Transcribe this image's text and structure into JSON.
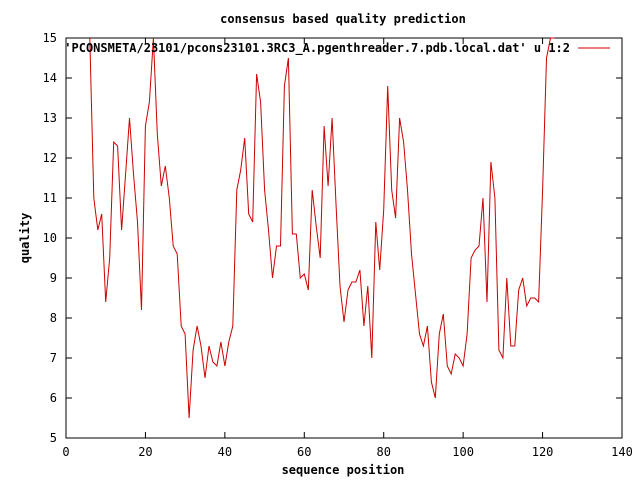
{
  "chart_data": {
    "type": "line",
    "title": "consensus based quality prediction",
    "xlabel": "sequence position",
    "ylabel": "quality",
    "xlim": [
      0,
      140
    ],
    "ylim": [
      5,
      15
    ],
    "xticks": [
      0,
      20,
      40,
      60,
      80,
      100,
      120,
      140
    ],
    "yticks": [
      5,
      6,
      7,
      8,
      9,
      10,
      11,
      12,
      13,
      14,
      15
    ],
    "grid": false,
    "legend_position": "top-right",
    "series": [
      {
        "name": "'PCONSMETA/23101/pcons23101.3RC3_A.pgenthreader.7.pdb.local.dat' u 1:2",
        "color": "#cc0000",
        "x": [
          6,
          7,
          8,
          9,
          10,
          11,
          12,
          13,
          14,
          15,
          16,
          17,
          18,
          19,
          20,
          21,
          22,
          23,
          24,
          25,
          26,
          27,
          28,
          29,
          30,
          31,
          32,
          33,
          34,
          35,
          36,
          37,
          38,
          39,
          40,
          41,
          42,
          43,
          44,
          45,
          46,
          47,
          48,
          49,
          50,
          51,
          52,
          53,
          54,
          55,
          56,
          57,
          58,
          59,
          60,
          61,
          62,
          63,
          64,
          65,
          66,
          67,
          68,
          69,
          70,
          71,
          72,
          73,
          74,
          75,
          76,
          77,
          78,
          79,
          80,
          81,
          82,
          83,
          84,
          85,
          86,
          87,
          88,
          89,
          90,
          91,
          92,
          93,
          94,
          95,
          96,
          97,
          98,
          99,
          100,
          101,
          102,
          103,
          104,
          105,
          106,
          107,
          108,
          109,
          110,
          111,
          112,
          113,
          114,
          115,
          116,
          117,
          118,
          119,
          120,
          121,
          122,
          123
        ],
        "y": [
          15,
          11,
          10.2,
          10.6,
          8.4,
          9.5,
          12.4,
          12.3,
          10.2,
          11.6,
          13,
          11.6,
          10.4,
          8.2,
          12.8,
          13.4,
          15,
          12.6,
          11.3,
          11.8,
          11,
          9.8,
          9.6,
          7.8,
          7.6,
          5.5,
          7.2,
          7.8,
          7.3,
          6.5,
          7.3,
          6.9,
          6.8,
          7.4,
          6.8,
          7.4,
          7.8,
          11.2,
          11.7,
          12.5,
          10.6,
          10.4,
          14.1,
          13.4,
          11.2,
          10.2,
          9,
          9.8,
          9.8,
          13.8,
          14.5,
          10.1,
          10.1,
          9,
          9.1,
          8.7,
          11.2,
          10.3,
          9.5,
          12.8,
          11.3,
          13,
          10.8,
          8.8,
          7.9,
          8.7,
          8.9,
          8.9,
          9.2,
          7.8,
          8.8,
          7,
          10.4,
          9.2,
          10.7,
          13.8,
          11.2,
          10.5,
          13,
          12.4,
          11.2,
          9.6,
          8.6,
          7.6,
          7.3,
          7.8,
          6.4,
          6,
          7.6,
          8.1,
          6.8,
          6.6,
          7.1,
          7,
          6.8,
          7.6,
          9.5,
          9.7,
          9.8,
          11,
          8.4,
          11.9,
          11,
          7.2,
          7,
          9,
          7.3,
          7.3,
          8.7,
          9,
          8.3,
          8.5,
          8.5,
          8.4,
          11.2,
          14.5,
          15,
          15
        ]
      }
    ]
  }
}
